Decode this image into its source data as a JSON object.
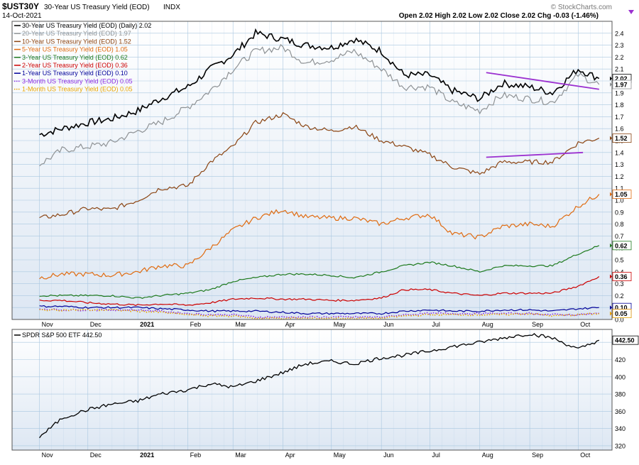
{
  "header": {
    "symbol": "$UST30Y",
    "description": "30-Year US Treasury Yield (EOD)",
    "exchange": "INDX",
    "date": "14-Oct-2021",
    "ohlc": "Open 2.02  High 2.02  Low 2.02  Close 2.02  Chg -0.03 (-1.46%)",
    "watermark": "© StockCharts.com"
  },
  "colors": {
    "background": "#ffffff",
    "plot_bg_top": "#ffffff",
    "plot_bg_bottom": "#dde7f3",
    "grid": "#a9c7e0",
    "border": "#555555",
    "trendline": "#9b30d0"
  },
  "chart_data": [
    {
      "type": "line",
      "panel": "yields",
      "x_months": [
        "Nov",
        "Dec",
        "2021",
        "Feb",
        "Mar",
        "Apr",
        "May",
        "Jun",
        "Jul",
        "Aug",
        "Sep",
        "Oct"
      ],
      "x": [
        "2020-11-01",
        "2020-11-15",
        "2020-12-01",
        "2020-12-15",
        "2021-01-01",
        "2021-01-15",
        "2021-02-01",
        "2021-02-15",
        "2021-03-01",
        "2021-03-15",
        "2021-04-01",
        "2021-04-15",
        "2021-05-01",
        "2021-05-15",
        "2021-06-01",
        "2021-06-15",
        "2021-07-01",
        "2021-07-15",
        "2021-08-01",
        "2021-08-15",
        "2021-09-01",
        "2021-09-15",
        "2021-10-01",
        "2021-10-14"
      ],
      "ylim": [
        0,
        2.5
      ],
      "y_ticks": [
        0.0,
        0.1,
        0.2,
        0.3,
        0.4,
        0.5,
        0.6,
        0.7,
        0.8,
        0.9,
        1.0,
        1.1,
        1.2,
        1.3,
        1.4,
        1.5,
        1.6,
        1.7,
        1.8,
        1.9,
        2.0,
        2.1,
        2.2,
        2.3,
        2.4
      ],
      "series": [
        {
          "name": "30-Year US Treasury Yield (EOD) (Daily) 2.02",
          "end_label": "2.02",
          "color": "#000000",
          "values": [
            1.55,
            1.6,
            1.65,
            1.68,
            1.75,
            1.85,
            1.95,
            2.1,
            2.22,
            2.4,
            2.35,
            2.3,
            2.28,
            2.35,
            2.25,
            2.05,
            2.05,
            1.92,
            1.85,
            1.98,
            1.95,
            1.9,
            2.1,
            2.02
          ]
        },
        {
          "name": "20-Year US Treasury Yield (EOD) 1.97",
          "end_label": "1.97",
          "color": "#8e9295",
          "values": [
            1.3,
            1.42,
            1.45,
            1.48,
            1.58,
            1.65,
            1.78,
            1.92,
            2.1,
            2.25,
            2.28,
            2.15,
            2.18,
            2.25,
            2.1,
            1.95,
            1.95,
            1.82,
            1.75,
            1.88,
            1.85,
            1.82,
            2.05,
            1.97
          ]
        },
        {
          "name": "10-Year US Treasury Yield (EOD) 1.52",
          "end_label": "1.52",
          "color": "#8b4513",
          "values": [
            0.85,
            0.88,
            0.93,
            0.92,
            1.0,
            1.1,
            1.12,
            1.32,
            1.45,
            1.65,
            1.72,
            1.62,
            1.58,
            1.62,
            1.5,
            1.45,
            1.38,
            1.28,
            1.22,
            1.32,
            1.32,
            1.32,
            1.48,
            1.52
          ]
        },
        {
          "name": "5-Year US Treasury Yield (EOD) 1.05",
          "end_label": "1.05",
          "color": "#e06b10",
          "values": [
            0.35,
            0.38,
            0.38,
            0.37,
            0.4,
            0.45,
            0.45,
            0.6,
            0.75,
            0.85,
            0.92,
            0.86,
            0.85,
            0.85,
            0.8,
            0.85,
            0.88,
            0.72,
            0.69,
            0.78,
            0.8,
            0.78,
            0.95,
            1.05
          ]
        },
        {
          "name": "3-Year US Treasury Yield (EOD) 0.62",
          "end_label": "0.62",
          "color": "#1e7a1e",
          "values": [
            0.2,
            0.2,
            0.2,
            0.2,
            0.18,
            0.2,
            0.22,
            0.25,
            0.32,
            0.35,
            0.38,
            0.38,
            0.37,
            0.35,
            0.4,
            0.45,
            0.48,
            0.45,
            0.4,
            0.45,
            0.45,
            0.45,
            0.55,
            0.62
          ]
        },
        {
          "name": "2-Year US Treasury Yield (EOD) 0.36",
          "end_label": "0.36",
          "color": "#cc0000",
          "values": [
            0.16,
            0.16,
            0.14,
            0.13,
            0.12,
            0.13,
            0.12,
            0.14,
            0.17,
            0.18,
            0.17,
            0.17,
            0.16,
            0.16,
            0.18,
            0.25,
            0.25,
            0.22,
            0.2,
            0.22,
            0.22,
            0.22,
            0.28,
            0.36
          ]
        },
        {
          "name": "1-Year US Treasury Yield (EOD) 0.10",
          "end_label": "0.10",
          "color": "#000099",
          "values": [
            0.11,
            0.11,
            0.1,
            0.1,
            0.1,
            0.09,
            0.08,
            0.07,
            0.07,
            0.07,
            0.06,
            0.05,
            0.05,
            0.05,
            0.05,
            0.07,
            0.08,
            0.07,
            0.07,
            0.08,
            0.08,
            0.07,
            0.09,
            0.1
          ]
        },
        {
          "name": "3-Month US Treasury Yield (EOD) 0.05",
          "end_label": "0.05",
          "color": "#8b2be2",
          "dashed": true,
          "values": [
            0.09,
            0.08,
            0.08,
            0.08,
            0.08,
            0.07,
            0.05,
            0.04,
            0.04,
            0.02,
            0.02,
            0.02,
            0.02,
            0.02,
            0.02,
            0.04,
            0.05,
            0.05,
            0.05,
            0.05,
            0.05,
            0.04,
            0.04,
            0.05
          ]
        },
        {
          "name": "1-Month US Treasury Yield (EOD) 0.05",
          "end_label": "0.05",
          "color": "#e8a500",
          "dashed": true,
          "values": [
            0.08,
            0.08,
            0.08,
            0.08,
            0.07,
            0.06,
            0.04,
            0.03,
            0.03,
            0.01,
            0.01,
            0.01,
            0.01,
            0.01,
            0.01,
            0.03,
            0.04,
            0.04,
            0.04,
            0.04,
            0.05,
            0.03,
            0.04,
            0.05
          ]
        }
      ],
      "trendlines": [
        {
          "from": [
            "2021-08-05",
            2.07
          ],
          "to": [
            "2021-10-14",
            1.93
          ]
        },
        {
          "from": [
            "2021-08-05",
            1.36
          ],
          "to": [
            "2021-10-04",
            1.4
          ]
        }
      ],
      "grid": true
    },
    {
      "type": "line",
      "panel": "spy",
      "title": "SPDR S&P 500 ETF 442.50",
      "end_label": "442.50",
      "x_months": [
        "Nov",
        "Dec",
        "2021",
        "Feb",
        "Mar",
        "Apr",
        "May",
        "Jun",
        "Jul",
        "Aug",
        "Sep",
        "Oct"
      ],
      "x": [
        "2020-11-01",
        "2020-11-15",
        "2020-12-01",
        "2020-12-15",
        "2021-01-01",
        "2021-01-15",
        "2021-02-01",
        "2021-02-15",
        "2021-03-01",
        "2021-03-15",
        "2021-04-01",
        "2021-04-15",
        "2021-05-01",
        "2021-05-15",
        "2021-06-01",
        "2021-06-15",
        "2021-07-01",
        "2021-07-15",
        "2021-08-01",
        "2021-08-15",
        "2021-09-01",
        "2021-09-15",
        "2021-10-01",
        "2021-10-14"
      ],
      "ylim": [
        315,
        455
      ],
      "y_ticks": [
        320,
        340,
        360,
        380,
        400,
        420,
        440
      ],
      "color": "#000000",
      "values": [
        330,
        352,
        362,
        368,
        372,
        380,
        385,
        392,
        388,
        395,
        405,
        415,
        418,
        415,
        422,
        425,
        430,
        435,
        440,
        445,
        450,
        445,
        432,
        442.5
      ],
      "grid": true
    }
  ]
}
